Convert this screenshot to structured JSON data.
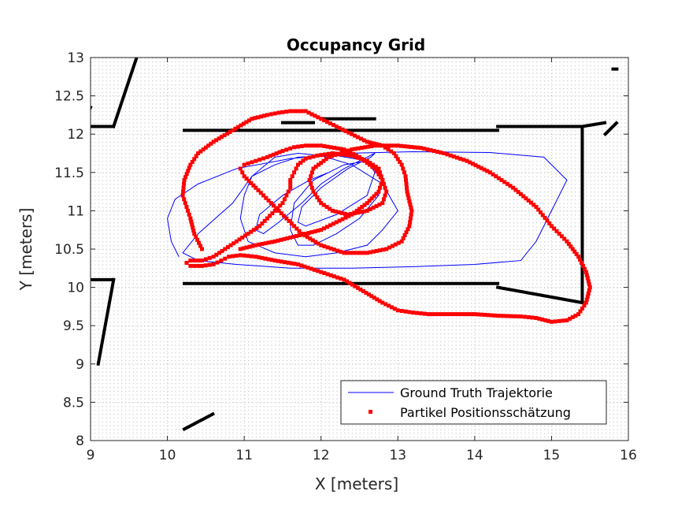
{
  "chart_data": {
    "type": "scatter",
    "title": "Occupancy Grid",
    "xlabel": "X [meters]",
    "ylabel": "Y [meters]",
    "xlim": [
      9,
      16
    ],
    "ylim": [
      8,
      13
    ],
    "xticks": [
      9,
      10,
      11,
      12,
      13,
      14,
      15,
      16
    ],
    "yticks": [
      8,
      8.5,
      9,
      9.5,
      10,
      10.5,
      11,
      11.5,
      12,
      12.5,
      13
    ],
    "xtick_labels": [
      "9",
      "10",
      "11",
      "12",
      "13",
      "14",
      "15",
      "16"
    ],
    "ytick_labels": [
      "8",
      "8.5",
      "9",
      "9.5",
      "10",
      "10.5",
      "11",
      "11.5",
      "12",
      "12.5",
      "13"
    ],
    "grid": true,
    "legend_position": "bottom-right",
    "colors": {
      "ground_truth": "#0000ff",
      "particles": "#ff0000",
      "occupied": "#000000",
      "grid_dots": "#c8c8c8"
    },
    "occupied_cells": [
      {
        "x": [
          9.0,
          9.3
        ],
        "y": [
          12.1,
          12.1
        ]
      },
      {
        "x": [
          9.3,
          9.6
        ],
        "y": [
          12.1,
          13.0
        ]
      },
      {
        "x": [
          8.95,
          9.0
        ],
        "y": [
          12.25,
          12.35
        ]
      },
      {
        "x": [
          9.0,
          9.3
        ],
        "y": [
          10.1,
          10.1
        ]
      },
      {
        "x": [
          9.3,
          9.1
        ],
        "y": [
          10.1,
          9.0
        ]
      },
      {
        "x": [
          10.22,
          14.3
        ],
        "y": [
          12.05,
          12.05
        ]
      },
      {
        "x": [
          14.3,
          15.4
        ],
        "y": [
          12.1,
          12.1
        ]
      },
      {
        "x": [
          15.4,
          15.4
        ],
        "y": [
          12.1,
          9.8
        ]
      },
      {
        "x": [
          15.4,
          15.7
        ],
        "y": [
          12.1,
          12.15
        ]
      },
      {
        "x": [
          10.22,
          14.3
        ],
        "y": [
          10.05,
          10.05
        ]
      },
      {
        "x": [
          14.3,
          15.4
        ],
        "y": [
          10.0,
          9.8
        ]
      },
      {
        "x": [
          10.22,
          10.6
        ],
        "y": [
          8.15,
          8.35
        ]
      },
      {
        "x": [
          15.8,
          15.85
        ],
        "y": [
          12.85,
          12.85
        ]
      },
      {
        "x": [
          11.5,
          11.9
        ],
        "y": [
          12.15,
          12.15
        ]
      },
      {
        "x": [
          12.0,
          12.7
        ],
        "y": [
          12.2,
          12.2
        ]
      },
      {
        "x": [
          15.7,
          15.85
        ],
        "y": [
          12.0,
          12.15
        ]
      }
    ],
    "series": [
      {
        "name": "Ground Truth Trajektorie",
        "style": "line",
        "x": [
          10.15,
          10.05,
          10.0,
          10.1,
          10.4,
          10.9,
          11.6,
          12.3,
          13.2,
          14.2,
          14.9,
          15.2,
          15.0,
          14.8,
          14.6,
          14.0,
          13.2,
          12.4,
          11.6,
          10.9,
          10.4,
          10.2,
          10.4,
          10.85,
          11.1,
          11.4,
          11.7,
          12.0,
          12.4,
          12.8,
          13.0,
          12.8,
          12.6,
          12.2,
          11.8,
          11.4,
          11.05,
          10.95,
          11.0,
          11.1,
          11.4,
          11.7,
          12.2,
          12.6,
          12.8,
          12.75,
          12.5,
          12.2,
          11.9,
          11.7,
          11.6,
          11.65,
          11.9,
          12.3,
          12.6,
          12.7,
          12.6,
          12.2,
          11.8,
          11.7,
          11.75,
          12.0,
          12.35,
          12.65,
          12.7,
          12.6,
          12.3,
          12.0,
          11.75,
          11.45,
          11.25,
          11.15,
          11.2,
          11.5,
          11.85,
          12.1
        ],
        "y": [
          10.4,
          10.6,
          10.9,
          11.15,
          11.35,
          11.55,
          11.68,
          11.75,
          11.77,
          11.76,
          11.7,
          11.4,
          11.0,
          10.6,
          10.35,
          10.3,
          10.27,
          10.25,
          10.25,
          10.3,
          10.35,
          10.45,
          10.7,
          11.1,
          11.45,
          11.7,
          11.75,
          11.72,
          11.6,
          11.35,
          11.0,
          10.75,
          10.55,
          10.45,
          10.4,
          10.45,
          10.6,
          10.9,
          11.2,
          11.45,
          11.6,
          11.7,
          11.72,
          11.65,
          11.45,
          11.2,
          10.9,
          10.7,
          10.55,
          10.55,
          10.75,
          11.1,
          11.4,
          11.6,
          11.65,
          11.5,
          11.2,
          10.95,
          10.8,
          10.85,
          11.05,
          11.3,
          11.55,
          11.7,
          11.75,
          11.7,
          11.55,
          11.35,
          11.1,
          10.85,
          10.7,
          10.75,
          10.95,
          11.2,
          11.4,
          11.5
        ]
      },
      {
        "name": "Partikel Positionsschätzung",
        "style": "markers",
        "x": [
          10.45,
          10.35,
          10.3,
          10.25,
          10.2,
          10.22,
          10.3,
          10.4,
          10.6,
          10.85,
          11.1,
          11.3,
          11.45,
          11.6,
          11.8,
          12.0,
          12.2,
          12.4,
          12.6,
          12.8,
          12.95,
          13.05,
          13.1,
          13.12,
          13.18,
          13.15,
          13.05,
          12.85,
          12.6,
          12.3,
          12.0,
          11.75,
          11.55,
          11.35,
          11.15,
          11.0,
          10.95,
          11.0,
          11.15,
          11.3,
          11.5,
          11.65,
          11.8,
          12.0,
          12.3,
          12.5,
          12.7,
          12.8,
          12.85,
          12.8,
          12.6,
          12.35,
          12.15,
          12.0,
          11.9,
          11.85,
          11.9,
          12.1,
          12.4,
          12.7,
          13.0,
          13.3,
          13.6,
          13.9,
          14.2,
          14.5,
          14.8,
          15.0,
          15.2,
          15.35,
          15.45,
          15.5,
          15.45,
          15.35,
          15.2,
          15.0,
          14.8,
          14.6,
          14.3,
          14.0,
          13.7,
          13.4,
          13.2,
          13.0,
          12.8,
          12.55,
          12.3,
          12.0,
          11.7,
          11.4,
          11.15,
          10.95,
          10.8,
          10.7,
          10.6,
          10.45,
          10.3,
          10.25,
          10.3,
          10.45,
          10.6,
          10.75,
          10.9,
          11.05,
          11.2,
          11.3,
          11.4,
          11.5,
          11.55,
          11.6,
          11.6,
          11.65,
          11.7,
          11.8,
          11.95,
          12.15,
          12.4,
          12.6,
          12.75,
          12.8,
          12.75,
          12.6,
          12.4,
          12.2,
          12.0,
          11.8,
          11.6,
          11.4,
          11.15,
          10.95
        ],
        "y": [
          10.5,
          10.7,
          10.9,
          11.05,
          11.2,
          11.4,
          11.6,
          11.75,
          11.9,
          12.05,
          12.2,
          12.25,
          12.28,
          12.3,
          12.3,
          12.2,
          12.1,
          12.0,
          11.9,
          11.85,
          11.75,
          11.6,
          11.45,
          11.25,
          11.0,
          10.8,
          10.6,
          10.5,
          10.45,
          10.45,
          10.55,
          10.7,
          10.9,
          11.1,
          11.3,
          11.45,
          11.55,
          11.6,
          11.65,
          11.7,
          11.78,
          11.83,
          11.85,
          11.85,
          11.8,
          11.7,
          11.55,
          11.4,
          11.25,
          11.1,
          11.0,
          10.95,
          11.0,
          11.1,
          11.25,
          11.4,
          11.55,
          11.7,
          11.8,
          11.85,
          11.85,
          11.82,
          11.75,
          11.65,
          11.5,
          11.3,
          11.05,
          10.8,
          10.6,
          10.4,
          10.2,
          10.0,
          9.8,
          9.65,
          9.57,
          9.55,
          9.6,
          9.62,
          9.63,
          9.65,
          9.65,
          9.65,
          9.67,
          9.7,
          9.8,
          9.95,
          10.1,
          10.2,
          10.3,
          10.35,
          10.4,
          10.42,
          10.4,
          10.35,
          10.3,
          10.28,
          10.28,
          10.32,
          10.35,
          10.35,
          10.4,
          10.5,
          10.6,
          10.7,
          10.8,
          10.9,
          11.0,
          11.1,
          11.2,
          11.3,
          11.4,
          11.5,
          11.6,
          11.68,
          11.72,
          11.75,
          11.72,
          11.65,
          11.55,
          11.4,
          11.25,
          11.1,
          10.95,
          10.85,
          10.75,
          10.7,
          10.65,
          10.6,
          10.55,
          10.5
        ]
      }
    ]
  }
}
